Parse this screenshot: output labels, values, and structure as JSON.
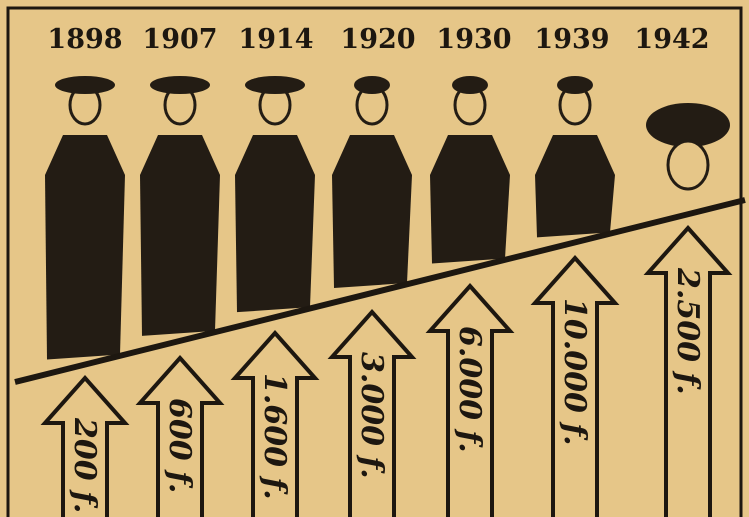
{
  "panels": [
    {
      "year": "1898",
      "price": "200 f."
    },
    {
      "year": "1907",
      "price": "600 f."
    },
    {
      "year": "1914",
      "price": "1.600 f."
    },
    {
      "year": "1920",
      "price": "3.000 f."
    },
    {
      "year": "1930",
      "price": "6.000 f."
    },
    {
      "year": "1939",
      "price": "10.000 f."
    },
    {
      "year": "1942",
      "price": "2.500 f."
    }
  ]
}
